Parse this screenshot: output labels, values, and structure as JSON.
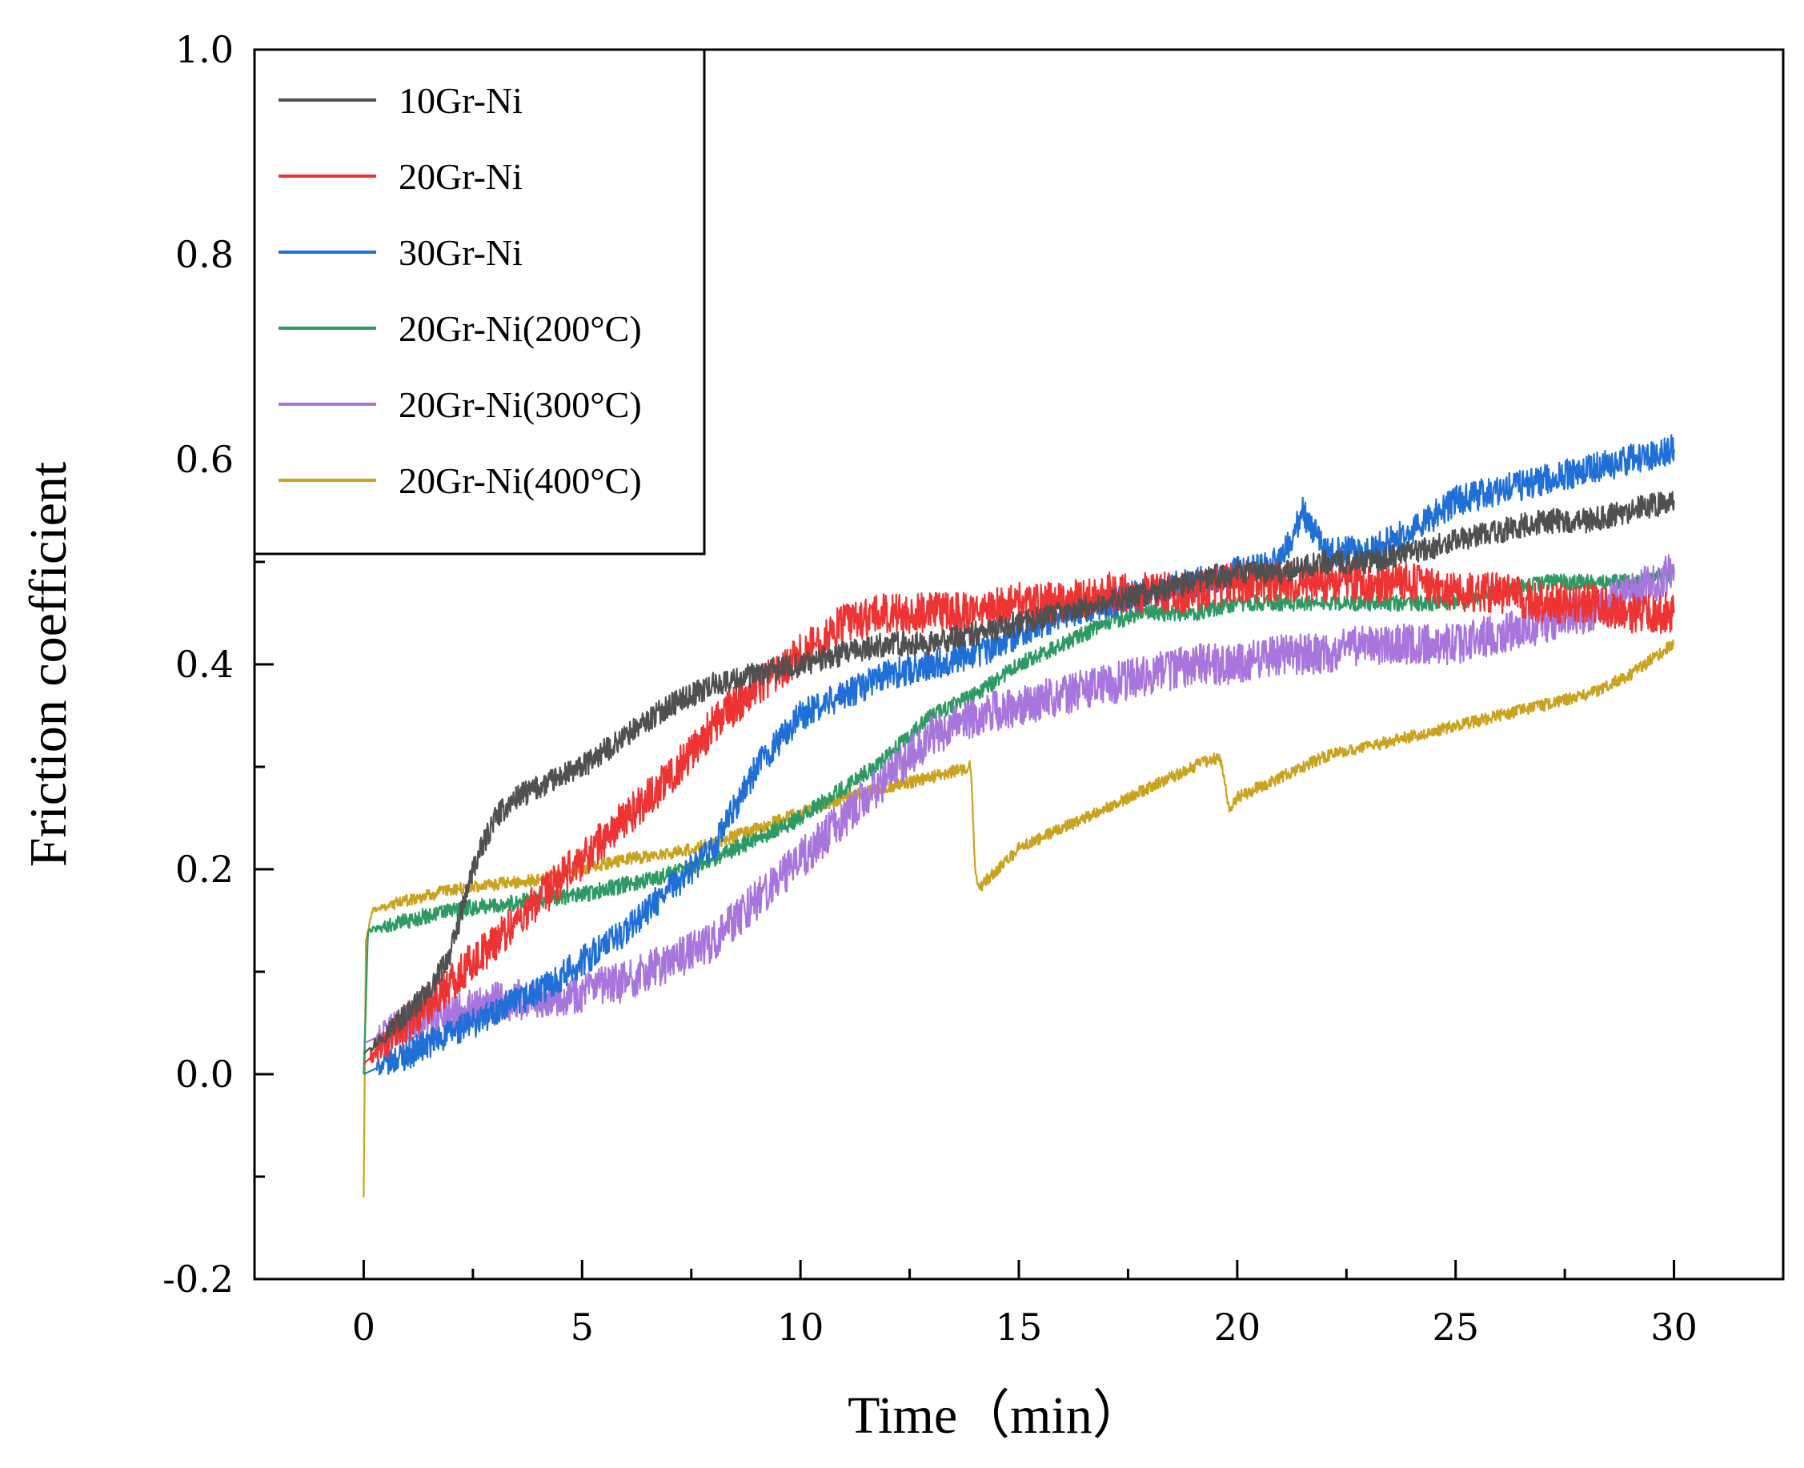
{
  "chart_data": {
    "type": "line",
    "xlabel": "Time（min）",
    "ylabel": "Friction coefficient",
    "xlim": [
      -2.5,
      32.5
    ],
    "ylim": [
      -0.2,
      1.0
    ],
    "x_ticks": [
      "0",
      "5",
      "10",
      "15",
      "20",
      "25",
      "30"
    ],
    "y_ticks": [
      "-0.2",
      "0.0",
      "0.2",
      "0.4",
      "0.6",
      "0.8",
      "1.0"
    ],
    "legend_position": "top-left",
    "grid": false,
    "series": [
      {
        "name": "10Gr-Ni",
        "color": "#505050",
        "noise": 0.012,
        "x": [
          0,
          0.5,
          1,
          1.5,
          2,
          2.5,
          3,
          3.5,
          4,
          5,
          6,
          7,
          8,
          9,
          10,
          11,
          12,
          13,
          14,
          15,
          16,
          17,
          18,
          19,
          20,
          21,
          22,
          23,
          24,
          25,
          26,
          27,
          28,
          29,
          30
        ],
        "y": [
          0.02,
          0.04,
          0.06,
          0.08,
          0.12,
          0.2,
          0.25,
          0.27,
          0.28,
          0.3,
          0.33,
          0.36,
          0.38,
          0.39,
          0.4,
          0.41,
          0.42,
          0.42,
          0.43,
          0.44,
          0.45,
          0.46,
          0.47,
          0.48,
          0.49,
          0.49,
          0.5,
          0.5,
          0.51,
          0.52,
          0.53,
          0.54,
          0.54,
          0.55,
          0.56
        ]
      },
      {
        "name": "20Gr-Ni",
        "color": "#ee3333",
        "noise": 0.02,
        "x": [
          0,
          0.5,
          1,
          1.5,
          2,
          3,
          4,
          5,
          6,
          7,
          8,
          9,
          10,
          11,
          12,
          13,
          14,
          15,
          16,
          17,
          18,
          19,
          20,
          21,
          22,
          23,
          24,
          25,
          26,
          27,
          28,
          29,
          30
        ],
        "y": [
          0.01,
          0.03,
          0.05,
          0.07,
          0.09,
          0.13,
          0.17,
          0.21,
          0.25,
          0.29,
          0.34,
          0.38,
          0.41,
          0.44,
          0.45,
          0.45,
          0.45,
          0.46,
          0.46,
          0.47,
          0.47,
          0.47,
          0.48,
          0.48,
          0.48,
          0.48,
          0.48,
          0.47,
          0.47,
          0.46,
          0.46,
          0.45,
          0.45
        ]
      },
      {
        "name": "30Gr-Ni",
        "color": "#1f6fd6",
        "noise": 0.015,
        "x": [
          0,
          1,
          2,
          3,
          4,
          5,
          6,
          7,
          8,
          9,
          10,
          11,
          12,
          13,
          14,
          15,
          16,
          17,
          18,
          19,
          20,
          21,
          21.5,
          22,
          23,
          24,
          25,
          26,
          27,
          28,
          29,
          30
        ],
        "y": [
          0.0,
          0.02,
          0.04,
          0.06,
          0.08,
          0.11,
          0.14,
          0.18,
          0.22,
          0.3,
          0.35,
          0.37,
          0.39,
          0.4,
          0.41,
          0.43,
          0.45,
          0.46,
          0.47,
          0.48,
          0.49,
          0.5,
          0.55,
          0.51,
          0.51,
          0.53,
          0.56,
          0.57,
          0.58,
          0.59,
          0.6,
          0.61
        ]
      },
      {
        "name": "20Gr-Ni(200°C)",
        "color": "#2e9a63",
        "noise": 0.008,
        "x": [
          0,
          0.1,
          1,
          2,
          3,
          4,
          5,
          6,
          7,
          8,
          9,
          10,
          11,
          12,
          13,
          14,
          15,
          16,
          17,
          18,
          19,
          20,
          21,
          22,
          23,
          24,
          25,
          26,
          27,
          28,
          29,
          30
        ],
        "y": [
          0.0,
          0.14,
          0.15,
          0.16,
          0.165,
          0.17,
          0.175,
          0.185,
          0.195,
          0.21,
          0.23,
          0.25,
          0.28,
          0.31,
          0.35,
          0.37,
          0.4,
          0.42,
          0.44,
          0.45,
          0.45,
          0.46,
          0.46,
          0.46,
          0.46,
          0.46,
          0.46,
          0.47,
          0.48,
          0.48,
          0.48,
          0.49
        ]
      },
      {
        "name": "20Gr-Ni(300°C)",
        "color": "#a875dc",
        "noise": 0.02,
        "x": [
          0,
          1,
          2,
          3,
          4,
          5,
          6,
          7,
          8,
          9,
          10,
          11,
          12,
          13,
          14,
          15,
          16,
          17,
          18,
          19,
          20,
          21,
          22,
          23,
          24,
          25,
          26,
          27,
          28,
          29,
          30
        ],
        "y": [
          0.03,
          0.05,
          0.06,
          0.07,
          0.075,
          0.08,
          0.09,
          0.11,
          0.13,
          0.17,
          0.21,
          0.25,
          0.29,
          0.33,
          0.35,
          0.36,
          0.37,
          0.38,
          0.39,
          0.4,
          0.4,
          0.41,
          0.41,
          0.42,
          0.42,
          0.42,
          0.43,
          0.44,
          0.45,
          0.47,
          0.49
        ]
      },
      {
        "name": "20Gr-Ni(400°C)",
        "color": "#c9a21e",
        "noise": 0.006,
        "x": [
          0,
          0.05,
          0.2,
          1,
          2,
          3,
          4,
          5,
          6,
          7,
          8,
          9,
          10,
          11,
          12,
          13,
          13.9,
          14.0,
          14.05,
          15,
          16,
          17,
          18,
          19,
          19.6,
          19.8,
          20,
          21,
          22,
          23,
          24,
          25,
          26,
          27,
          28,
          29,
          30
        ],
        "y": [
          -0.12,
          0.13,
          0.16,
          0.17,
          0.18,
          0.185,
          0.19,
          0.2,
          0.21,
          0.215,
          0.225,
          0.24,
          0.255,
          0.27,
          0.28,
          0.29,
          0.3,
          0.2,
          0.18,
          0.22,
          0.24,
          0.26,
          0.28,
          0.3,
          0.31,
          0.26,
          0.27,
          0.29,
          0.31,
          0.32,
          0.33,
          0.34,
          0.35,
          0.36,
          0.37,
          0.39,
          0.42
        ]
      }
    ]
  }
}
